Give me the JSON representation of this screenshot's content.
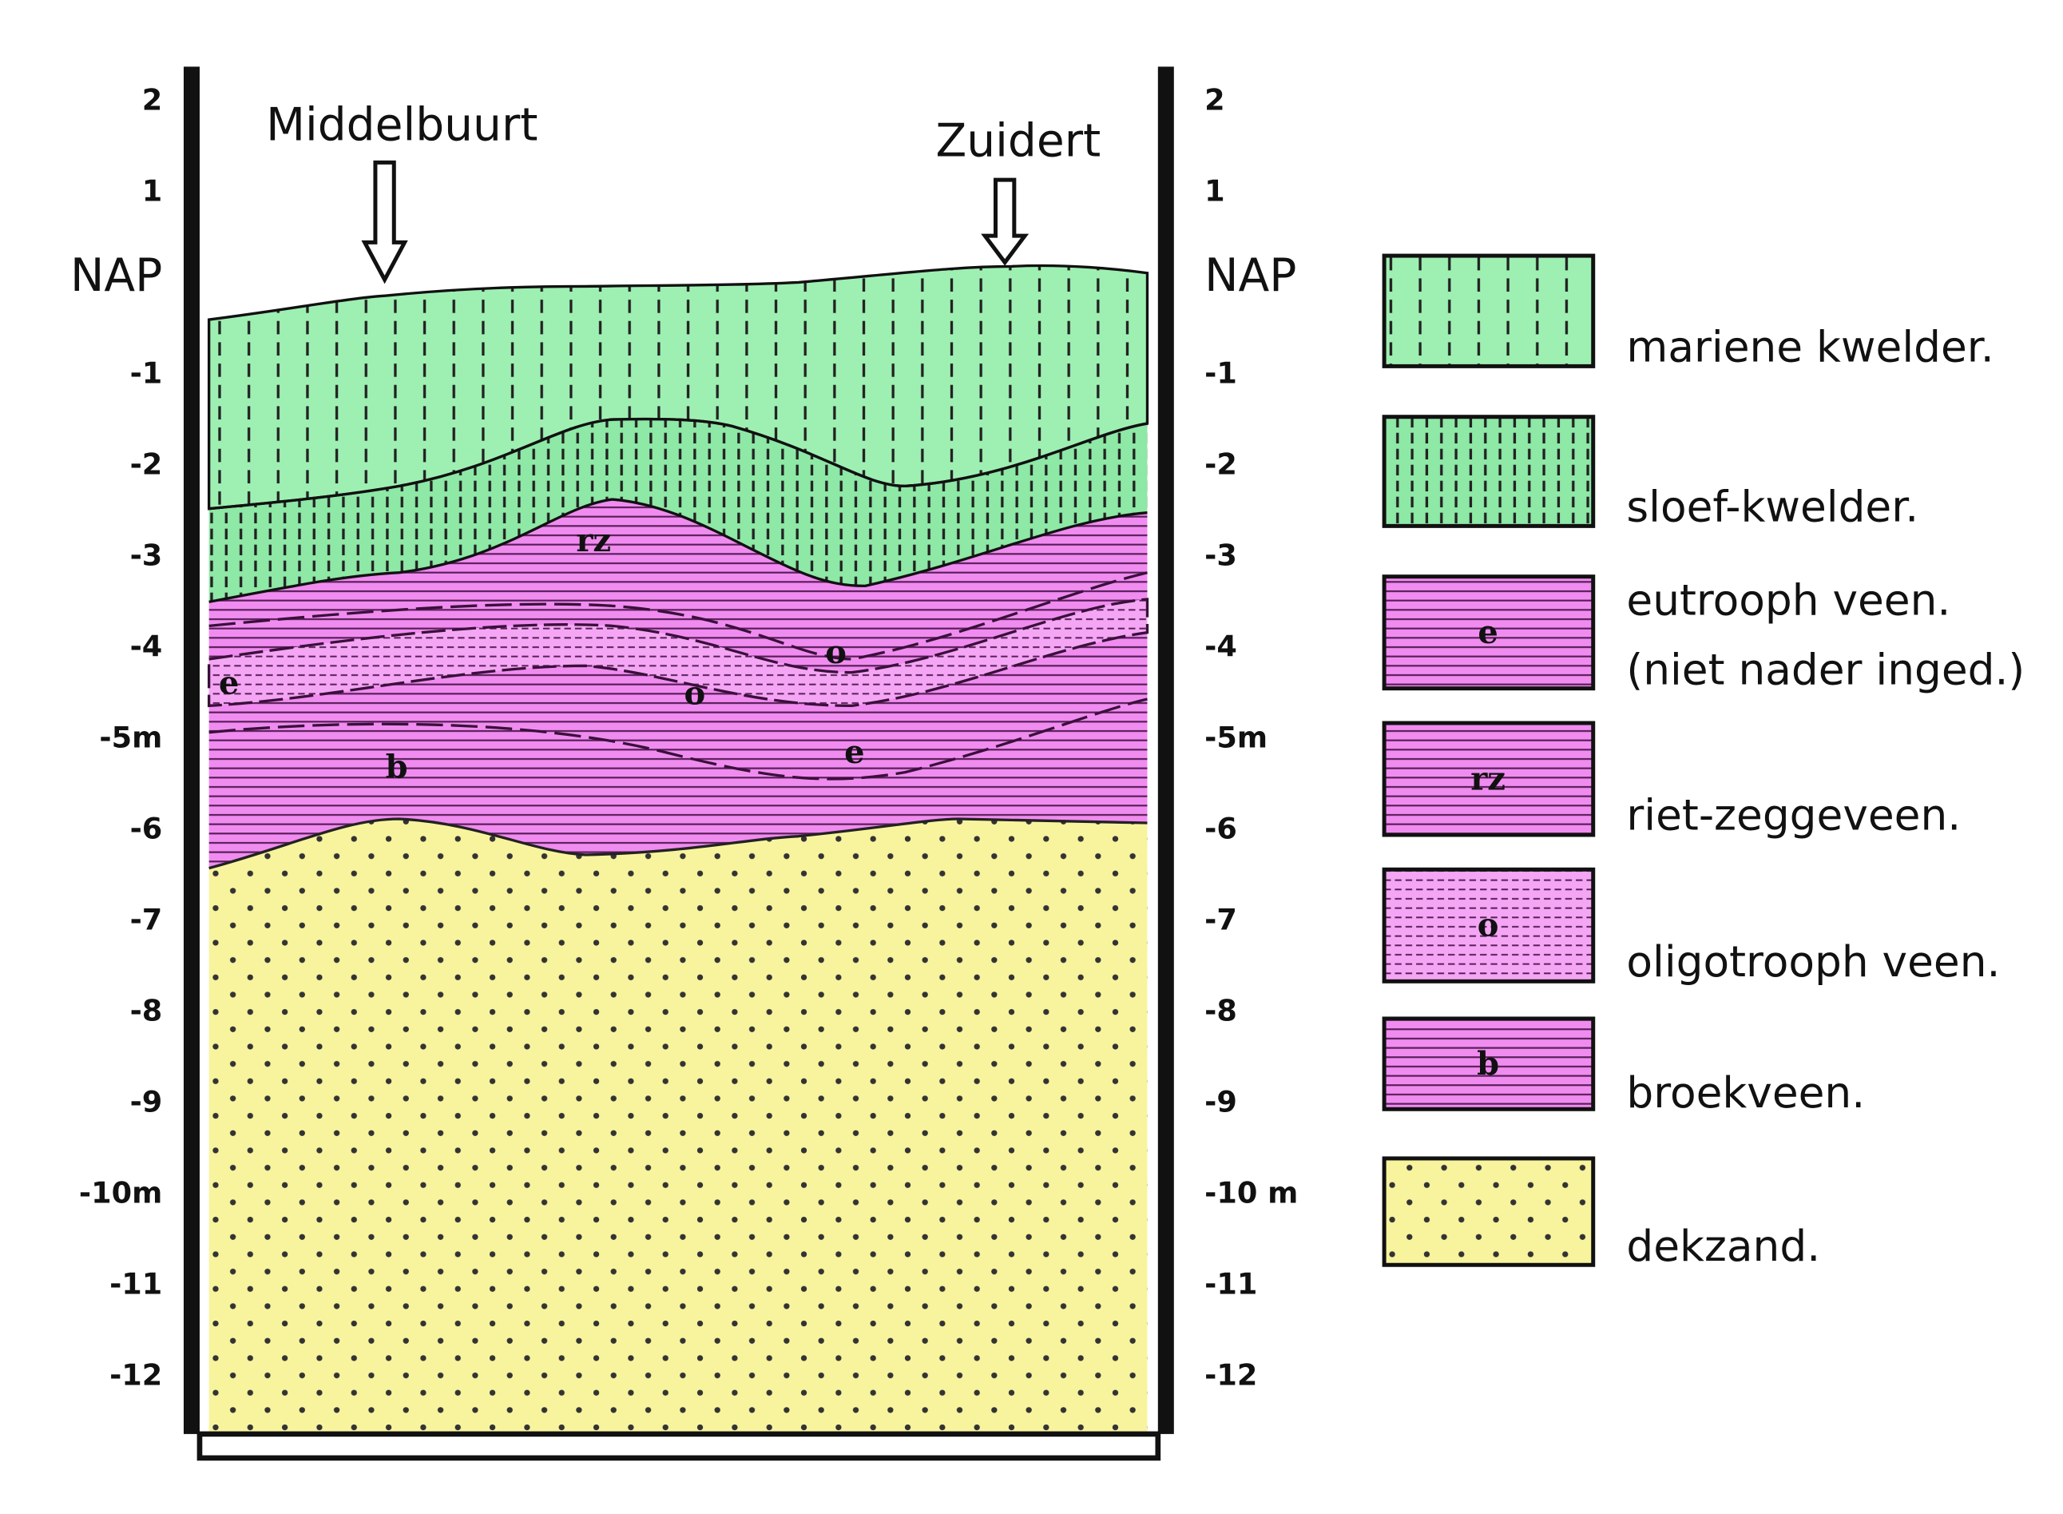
{
  "locations": [
    "Middelbuurt",
    "Zuidert"
  ],
  "depth_left": [
    "2",
    "1",
    "NAP",
    "-1",
    "-2",
    "-3",
    "-4",
    "-5m",
    "-6",
    "-7",
    "-8",
    "-9",
    "-10m",
    "-11",
    "-12"
  ],
  "depth_right": [
    "2",
    "1",
    "NAP",
    "-1",
    "-2",
    "-3",
    "-4",
    "-5m",
    "-6",
    "-7",
    "-8",
    "-9",
    "-10 m",
    "-11",
    "-12"
  ],
  "section_labels": [
    "rz",
    "e",
    "o",
    "o",
    "e",
    "b"
  ],
  "legend": [
    {
      "label": "mariene kwelder."
    },
    {
      "label": "sloef-kwelder."
    },
    {
      "code": "e",
      "label": "eutrooph veen.",
      "note": "(niet nader inged.)"
    },
    {
      "code": "rz",
      "label": "riet-zeggeveen."
    },
    {
      "code": "o",
      "label": "oligotrooph veen."
    },
    {
      "code": "b",
      "label": "broekveen."
    },
    {
      "label": "dekzand."
    }
  ]
}
